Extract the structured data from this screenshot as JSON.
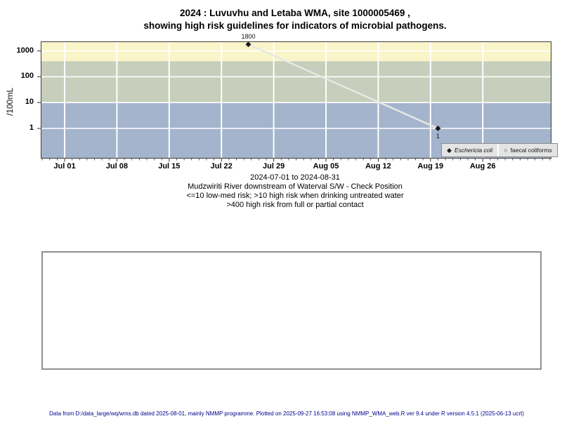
{
  "title": {
    "line1": "2024 : Luvuvhu and Letaba WMA, site 1000005469 ,",
    "line2": "showing high risk guidelines for indicators of microbial pathogens."
  },
  "chart_data": {
    "type": "scatter",
    "title": "",
    "xlabel": "",
    "ylabel": "/100mL",
    "y_scale": "log10",
    "y_ticks": [
      1000,
      100,
      10,
      1
    ],
    "y_range": [
      0.07,
      2300
    ],
    "x_tick_labels": [
      "Jul 01",
      "Jul 08",
      "Jul 15",
      "Jul 22",
      "Jul 29",
      "Aug 05",
      "Aug 12",
      "Aug 19",
      "Aug 26"
    ],
    "x_tick_days": [
      0,
      7,
      14,
      21,
      28,
      35,
      42,
      49,
      56
    ],
    "x_range_days": [
      -3.2,
      65.2
    ],
    "date_range": [
      "2024-07-01",
      "2024-08-31"
    ],
    "grid": true,
    "grid_color": "#ffffff",
    "risk_bands": [
      {
        "name": "high-risk-contact",
        "from": 400,
        "to": 2300,
        "color": "#faf5c9"
      },
      {
        "name": "high-risk-drinking",
        "from": 10,
        "to": 400,
        "color": "#c7cebb"
      },
      {
        "name": "low-med-risk",
        "from": 0.07,
        "to": 10,
        "color": "#a4b4cc"
      }
    ],
    "series": [
      {
        "name": "Eschericia coli",
        "marker": "filled-diamond",
        "marker_glyph": "♦",
        "color": "#1a1a1a",
        "line_color": "#e7e7e7",
        "points": [
          {
            "day_offset": 24.6,
            "value": 1800,
            "label": "1800",
            "label_pos": "above"
          },
          {
            "day_offset": 50,
            "value": 1,
            "label": "1",
            "label_pos": "below"
          }
        ]
      },
      {
        "name": "faecal coliforms",
        "marker": "open-circle",
        "marker_glyph": "○",
        "color": "#333333",
        "points": []
      }
    ],
    "legend_position": "bottom-right"
  },
  "caption": {
    "line1": "2024-07-01 to 2024-08-31",
    "line2": "Mudzwiriti River downstream of Waterval S/W - Check Position",
    "line3": "<=10 low-med risk; >10 high risk when drinking untreated water",
    "line4": ">400 high risk from full or partial contact"
  },
  "footer": "Data from D:/data_large/wq/wms.db dated 2025-08-01, mainly NMMP programme. Plotted on 2025-09-27 16:53:08 using NMMP_WMA_web.R ver 9.4 under R version 4.5.1 (2025-06-13 ucrt)"
}
